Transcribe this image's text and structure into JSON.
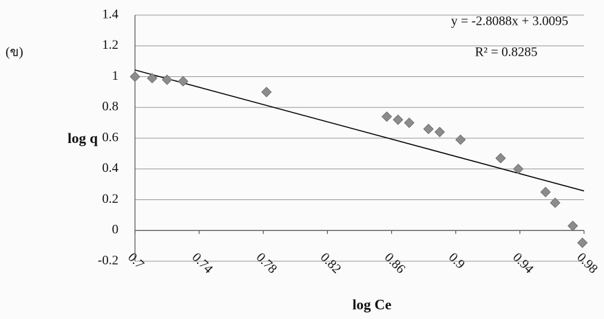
{
  "chart_data": {
    "type": "scatter",
    "panel_label": "(ข)",
    "x_label": "log Ce",
    "y_label": "log q",
    "x": [
      0.7,
      0.7107,
      0.72,
      0.73,
      0.782,
      0.857,
      0.864,
      0.871,
      0.883,
      0.89,
      0.903,
      0.928,
      0.939,
      0.956,
      0.962,
      0.973,
      0.979
    ],
    "series": [
      {
        "color": "#8c8c8c",
        "values": [
          1.0,
          0.99,
          0.98,
          0.97,
          0.9,
          0.74,
          0.72,
          0.7,
          0.66,
          0.64,
          0.59,
          0.47,
          0.4,
          0.25,
          0.18,
          0.03,
          -0.08
        ]
      }
    ],
    "trendline": {
      "label": "y = -2.8088x + 3.0095",
      "r2_label": "R² = 0.8285",
      "slope": -2.8088,
      "intercept": 3.0095,
      "color": "#000000"
    },
    "xlim": [
      0.7,
      0.98
    ],
    "xticks": [
      0.7,
      0.74,
      0.78,
      0.82,
      0.86,
      0.9,
      0.94,
      0.98
    ],
    "ylim": [
      -0.2,
      1.4
    ],
    "yticks": [
      1.4,
      1.2,
      1,
      0.8,
      0.6,
      0.4,
      0.2,
      0,
      -0.2
    ],
    "grid": true
  }
}
